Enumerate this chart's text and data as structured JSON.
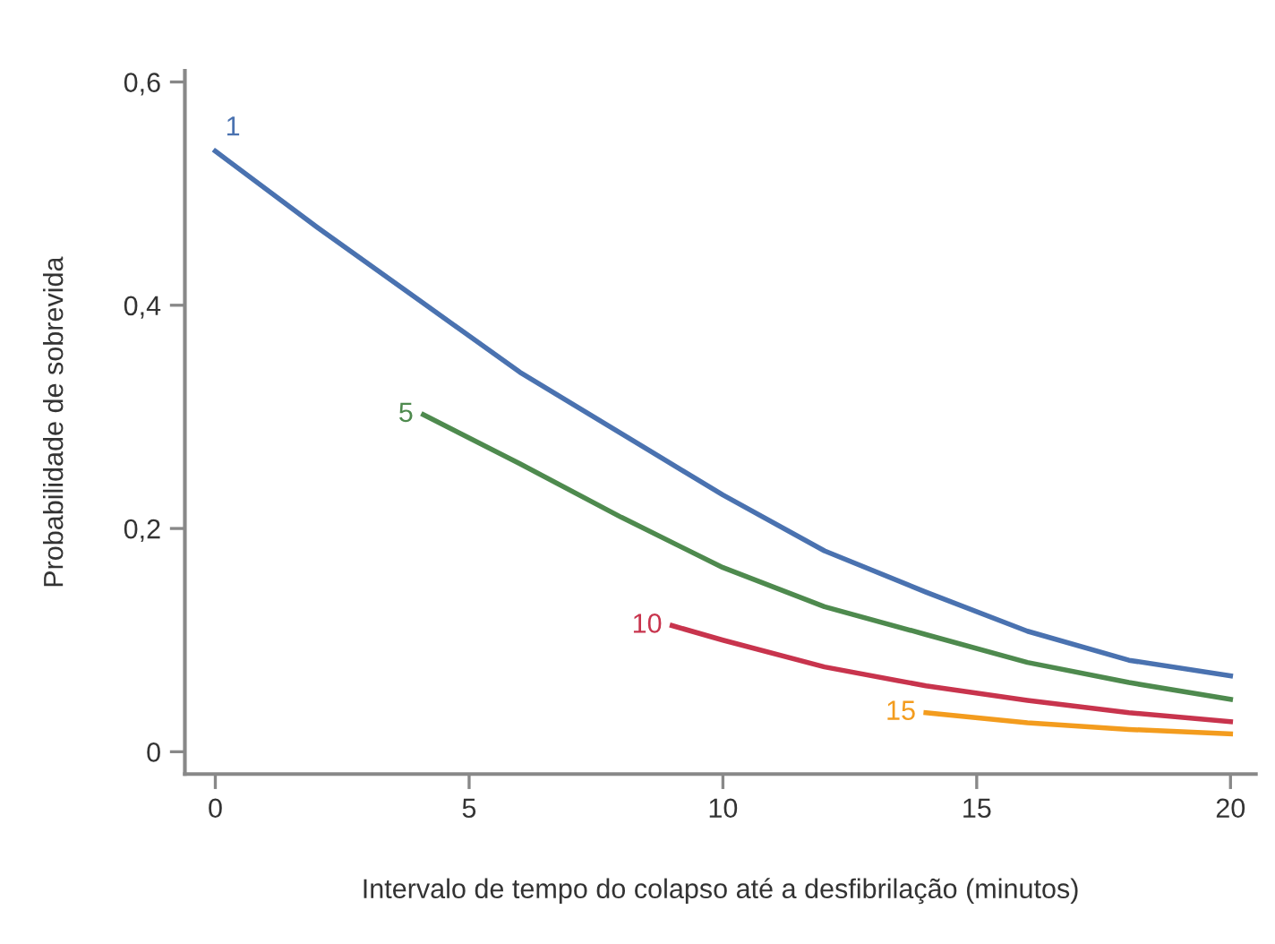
{
  "chart_data": {
    "type": "line",
    "xlabel": "Intervalo de tempo do colapso até a desfibrilação (minutos)",
    "ylabel": "Probabilidade de sobrevida",
    "xlim": [
      -0.6,
      20.5
    ],
    "ylim": [
      -0.02,
      0.61
    ],
    "xticks": [
      0,
      5,
      10,
      15,
      20
    ],
    "yticks": [
      {
        "value": 0,
        "label": "0"
      },
      {
        "value": 0.2,
        "label": "0,2"
      },
      {
        "value": 0.4,
        "label": "0,4"
      },
      {
        "value": 0.6,
        "label": "0,6"
      }
    ],
    "grid": false,
    "legend": false,
    "marker": "none",
    "line_style": "solid",
    "series": [
      {
        "name": "1",
        "color": "#4a72b0",
        "x": [
          0,
          2,
          4,
          6,
          8,
          10,
          12,
          14,
          16,
          18,
          20
        ],
        "values": [
          0.538,
          0.47,
          0.405,
          0.34,
          0.285,
          0.23,
          0.18,
          0.143,
          0.108,
          0.082,
          0.068
        ]
      },
      {
        "name": "5",
        "color": "#4e8a4e",
        "x": [
          4.1,
          6,
          8,
          10,
          12,
          14,
          16,
          18,
          20
        ],
        "values": [
          0.302,
          0.258,
          0.21,
          0.165,
          0.13,
          0.105,
          0.08,
          0.062,
          0.047
        ]
      },
      {
        "name": "10",
        "color": "#c8344d",
        "x": [
          9,
          10,
          12,
          14,
          16,
          18,
          20
        ],
        "values": [
          0.113,
          0.1,
          0.076,
          0.059,
          0.046,
          0.035,
          0.027
        ]
      },
      {
        "name": "15",
        "color": "#f39c1e",
        "x": [
          14,
          16,
          18,
          20
        ],
        "values": [
          0.035,
          0.026,
          0.02,
          0.016
        ]
      }
    ]
  }
}
